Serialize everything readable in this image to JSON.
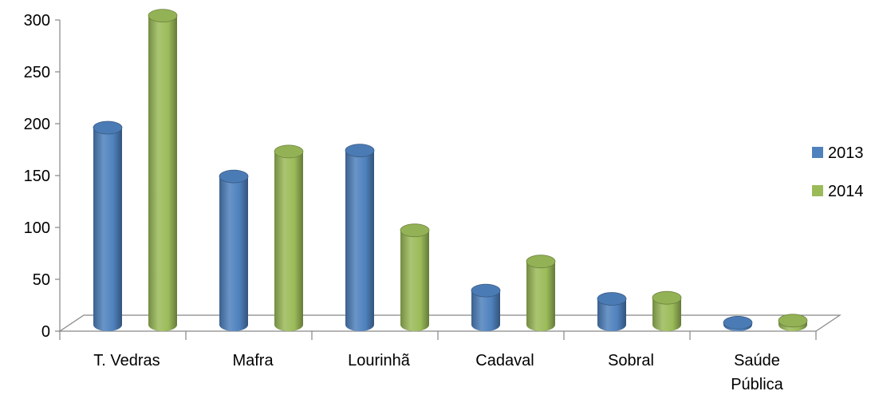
{
  "chart_data": {
    "type": "bar",
    "style": "3d-cylinder",
    "categories": [
      [
        "T. Vedras"
      ],
      [
        "Mafra"
      ],
      [
        "Lourinhã"
      ],
      [
        "Cadaval"
      ],
      [
        "Sobral"
      ],
      [
        "Saúde",
        "Pública"
      ]
    ],
    "series": [
      {
        "name": "2013",
        "color": "#4F81BD",
        "values": [
          190,
          143,
          168,
          33,
          25,
          2
        ]
      },
      {
        "name": "2014",
        "color": "#9BBB59",
        "values": [
          298,
          167,
          91,
          61,
          26,
          4
        ]
      }
    ],
    "yticks": [
      0,
      50,
      100,
      150,
      200,
      250,
      300
    ],
    "ylim": [
      0,
      300
    ],
    "grid": false,
    "legend_position": "right",
    "title": "",
    "xlabel": "",
    "ylabel": ""
  }
}
